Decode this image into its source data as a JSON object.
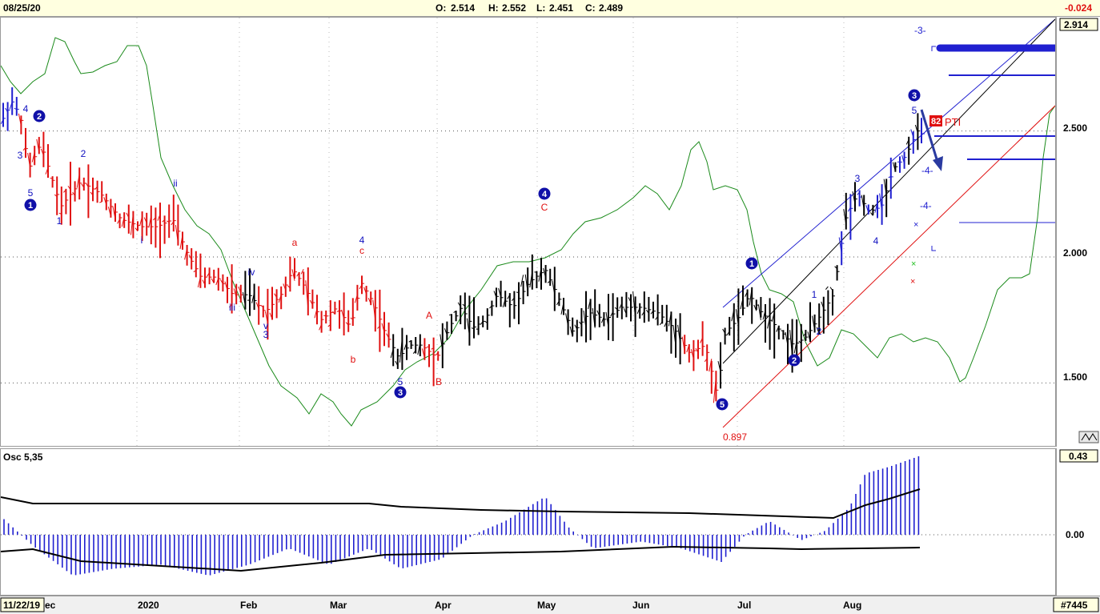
{
  "header": {
    "date": "08/25/20",
    "open_label": "O:",
    "open": "2.514",
    "high_label": "H:",
    "high": "2.552",
    "low_label": "L:",
    "low": "2.451",
    "close_label": "C:",
    "close": "2.489",
    "change": "-0.024"
  },
  "price_axis": {
    "last_price": "2.914",
    "ticks": [
      "2.500",
      "2.000",
      "1.500"
    ]
  },
  "osc_panel": {
    "title": "Osc 5,35",
    "last_value": "0.43",
    "zero_tick": "0.00"
  },
  "footer": {
    "range_start": "11/22/19",
    "range_suffix": "ec",
    "months": [
      "2020",
      "Feb",
      "Mar",
      "Apr",
      "May",
      "Jun",
      "Jul",
      "Aug"
    ],
    "symbol": "#7445"
  },
  "annotations": {
    "pti_value": "82",
    "pti_label": "PTI",
    "target_low": "0.897",
    "wave_minus3": "-3-",
    "wave_minus4a": "-4-",
    "wave_minus4b": "-4-"
  },
  "chart_data": {
    "type": "bar",
    "series_name": "",
    "y_range": [
      1.25,
      2.95
    ],
    "y_ticks": [
      1.5,
      2.0,
      2.5
    ],
    "x_range": [
      "2019-11-22",
      "2020-08-25"
    ],
    "last_bar": {
      "date": "2020-08-25",
      "open": 2.514,
      "high": 2.552,
      "low": 2.451,
      "close": 2.489
    },
    "oscillator": {
      "name": "Osc 5,35",
      "last": 0.43,
      "zero": 0.0
    },
    "wave_labels": [
      {
        "text": "4",
        "color": "#1010c0"
      },
      {
        "text": "2",
        "color": "#1010c0",
        "circled": true
      },
      {
        "text": "3",
        "color": "#1010c0"
      },
      {
        "text": "5",
        "color": "#1010c0"
      },
      {
        "text": "1",
        "color": "#1010c0",
        "circled": true
      },
      {
        "text": "1",
        "color": "#1010c0"
      },
      {
        "text": "2",
        "color": "#1010c0"
      },
      {
        "text": "ii",
        "color": "#1010c0"
      },
      {
        "text": "i",
        "color": "#1010c0"
      },
      {
        "text": "iv",
        "color": "#1010c0"
      },
      {
        "text": "iii",
        "color": "#1010c0"
      },
      {
        "text": "v",
        "color": "#1010c0"
      },
      {
        "text": "3",
        "color": "#1010c0"
      },
      {
        "text": "a",
        "color": "#e01010"
      },
      {
        "text": "b",
        "color": "#e01010"
      },
      {
        "text": "c",
        "color": "#e01010"
      },
      {
        "text": "4",
        "color": "#1010c0"
      },
      {
        "text": "5",
        "color": "#1010c0"
      },
      {
        "text": "3",
        "color": "#1010c0",
        "circled": true
      },
      {
        "text": "A",
        "color": "#e01010"
      },
      {
        "text": "B",
        "color": "#e01010"
      },
      {
        "text": "C",
        "color": "#e01010"
      },
      {
        "text": "4",
        "color": "#1010c0",
        "circled": true
      },
      {
        "text": "5",
        "color": "#1010c0",
        "circled": true
      },
      {
        "text": "1",
        "color": "#1010c0",
        "circled": true
      },
      {
        "text": "2",
        "color": "#1010c0",
        "circled": true
      },
      {
        "text": "1",
        "color": "#1010c0"
      },
      {
        "text": "2",
        "color": "#1010c0"
      },
      {
        "text": "3",
        "color": "#1010c0"
      },
      {
        "text": "4",
        "color": "#1010c0"
      },
      {
        "text": "5",
        "color": "#1010c0"
      },
      {
        "text": "3",
        "color": "#1010c0",
        "circled": true
      }
    ],
    "colors": {
      "up": "#000000",
      "down": "#e01010",
      "envelope": "#1a8a1a",
      "histogram": "#2020d0",
      "channel_blue": "#2020d0",
      "channel_red": "#e01010",
      "channel_black": "#000000"
    }
  }
}
